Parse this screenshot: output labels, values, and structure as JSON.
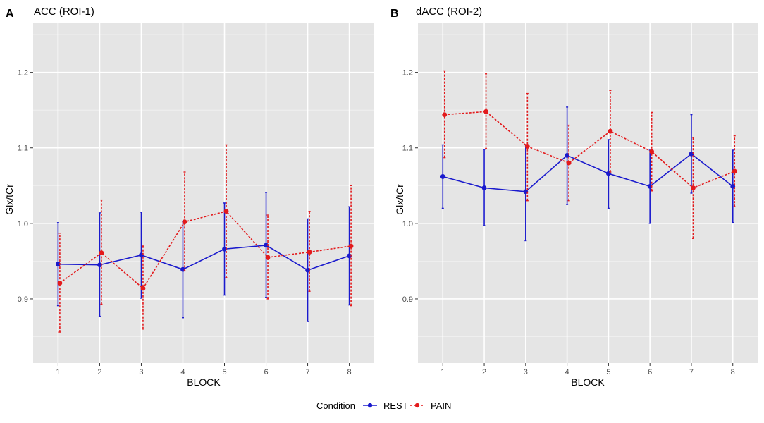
{
  "legend": {
    "title": "Condition",
    "entries": [
      {
        "name": "REST",
        "color": "#1a1acd",
        "dashed": false
      },
      {
        "name": "PAIN",
        "color": "#e31a1c",
        "dashed": true
      }
    ]
  },
  "chart_data": [
    {
      "type": "line",
      "panel_letter": "A",
      "title": "ACC (ROI-1)",
      "xlabel": "BLOCK",
      "ylabel": "Glx/tCr",
      "categories": [
        1,
        2,
        3,
        4,
        5,
        6,
        7,
        8
      ],
      "xlim": [
        0.4,
        8.6
      ],
      "ylim": [
        0.815,
        1.265
      ],
      "yticks": [
        0.9,
        1.0,
        1.1,
        1.2
      ],
      "ytick_labels": [
        "0.9",
        "1.0",
        "1.1",
        "1.2"
      ],
      "series": [
        {
          "name": "REST",
          "color": "#1a1acd",
          "dashed": false,
          "values": [
            0.946,
            0.945,
            0.958,
            0.939,
            0.966,
            0.971,
            0.938,
            0.957
          ],
          "err_low": [
            0.891,
            0.877,
            0.901,
            0.875,
            0.905,
            0.902,
            0.87,
            0.892
          ],
          "err_high": [
            1.001,
            1.014,
            1.015,
            1.003,
            1.027,
            1.041,
            1.006,
            1.022
          ]
        },
        {
          "name": "PAIN",
          "color": "#e31a1c",
          "dashed": true,
          "values": [
            0.921,
            0.961,
            0.914,
            1.002,
            1.016,
            0.955,
            0.962,
            0.97
          ],
          "err_low": [
            0.856,
            0.893,
            0.86,
            0.937,
            0.928,
            0.9,
            0.91,
            0.891
          ],
          "err_high": [
            0.987,
            1.031,
            0.97,
            1.068,
            1.104,
            1.011,
            1.016,
            1.05
          ]
        }
      ]
    },
    {
      "type": "line",
      "panel_letter": "B",
      "title": "dACC (ROI-2)",
      "xlabel": "BLOCK",
      "ylabel": "Glx/tCr",
      "categories": [
        1,
        2,
        3,
        4,
        5,
        6,
        7,
        8
      ],
      "xlim": [
        0.4,
        8.6
      ],
      "ylim": [
        0.815,
        1.265
      ],
      "yticks": [
        0.9,
        1.0,
        1.1,
        1.2
      ],
      "ytick_labels": [
        "0.9",
        "1.0",
        "1.1",
        "1.2"
      ],
      "series": [
        {
          "name": "REST",
          "color": "#1a1acd",
          "dashed": false,
          "values": [
            1.062,
            1.047,
            1.042,
            1.09,
            1.066,
            1.049,
            1.092,
            1.049
          ],
          "err_low": [
            1.02,
            0.997,
            0.977,
            1.025,
            1.02,
            1.0,
            1.04,
            1.001
          ],
          "err_high": [
            1.104,
            1.098,
            1.104,
            1.154,
            1.111,
            1.097,
            1.144,
            1.097
          ]
        },
        {
          "name": "PAIN",
          "color": "#e31a1c",
          "dashed": true,
          "values": [
            1.144,
            1.148,
            1.102,
            1.08,
            1.122,
            1.095,
            1.047,
            1.069
          ],
          "err_low": [
            1.087,
            1.099,
            1.03,
            1.03,
            1.068,
            1.043,
            0.98,
            1.022
          ],
          "err_high": [
            1.202,
            1.198,
            1.172,
            1.13,
            1.176,
            1.147,
            1.114,
            1.116
          ]
        }
      ]
    }
  ]
}
